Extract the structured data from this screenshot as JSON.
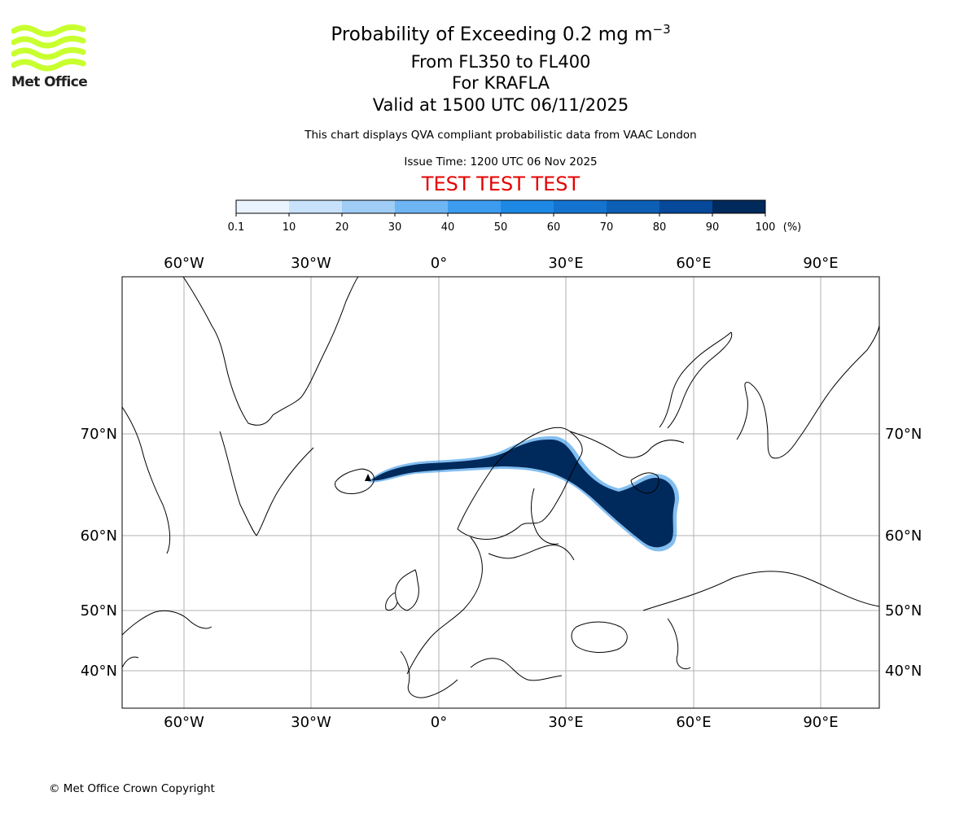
{
  "title": {
    "main": "Probability of Exceeding 0.2 mg m",
    "main_superscript": "−3",
    "line2": "From FL350 to FL400",
    "line3": "For KRAFLA",
    "line4": "Valid at 1500 UTC 06/11/2025"
  },
  "description": "This chart displays QVA compliant probabilistic data from VAAC London",
  "issue_time": "Issue Time: 1200 UTC 06 Nov 2025",
  "test_banner": "TEST TEST TEST",
  "logo": {
    "text": "Met Office",
    "color": "#c8ff2e"
  },
  "copyright": "© Met Office Crown Copyright",
  "colorbar": {
    "ticks": [
      "0.1",
      "10",
      "20",
      "30",
      "40",
      "50",
      "60",
      "70",
      "80",
      "90",
      "100"
    ],
    "unit": "(%)",
    "colors": [
      "#eaf4ff",
      "#c8e2fb",
      "#9fcdf6",
      "#6eb5f4",
      "#3d9cf0",
      "#1e88e5",
      "#1573d0",
      "#0d5fb5",
      "#06489a",
      "#002a5c"
    ]
  },
  "map": {
    "lon_labels": [
      "60°W",
      "30°W",
      "0°",
      "30°E",
      "60°E",
      "90°E"
    ],
    "lat_labels": [
      "70°N",
      "60°N",
      "50°N",
      "40°N"
    ],
    "land_outline_color": "#000000",
    "grid_color": "#b0b0b0",
    "plume_color": "#002a5c",
    "plume_edge_color": "#1e88e5",
    "source": "KRAFLA"
  }
}
